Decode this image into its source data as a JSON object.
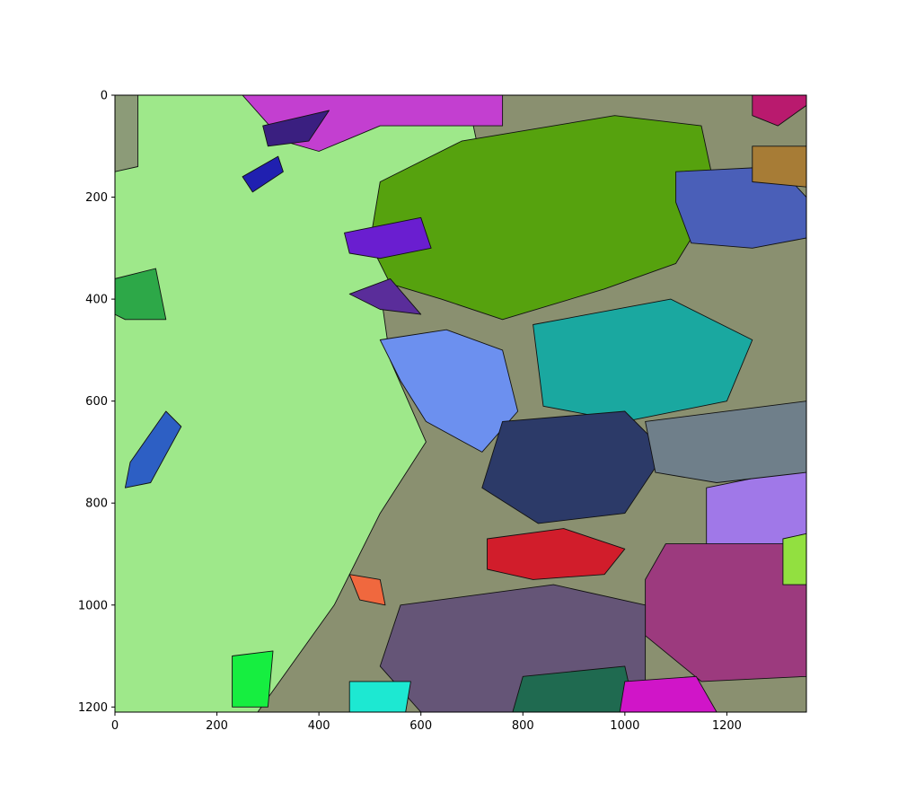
{
  "chart_data": {
    "type": "heatmap",
    "title": "",
    "xlabel": "",
    "ylabel": "",
    "xlim": [
      0,
      1356
    ],
    "ylim": [
      1210,
      0
    ],
    "x_ticks": [
      0,
      200,
      400,
      600,
      800,
      1000,
      1200
    ],
    "y_ticks": [
      0,
      200,
      400,
      600,
      800,
      1000,
      1200
    ],
    "x_tick_labels": [
      "0",
      "200",
      "400",
      "600",
      "800",
      "1000",
      "1200"
    ],
    "y_tick_labels": [
      "0",
      "200",
      "400",
      "600",
      "800",
      "1000",
      "1200"
    ],
    "grid": false,
    "background_color": "#8a9070",
    "regions": [
      {
        "name": "light-green-region-west",
        "color": "#9ee88a",
        "polygon": [
          [
            40,
            0
          ],
          [
            690,
            0
          ],
          [
            720,
            140
          ],
          [
            690,
            220
          ],
          [
            620,
            350
          ],
          [
            520,
            380
          ],
          [
            540,
            520
          ],
          [
            610,
            680
          ],
          [
            520,
            820
          ],
          [
            430,
            1000
          ],
          [
            280,
            1210
          ],
          [
            0,
            1210
          ],
          [
            0,
            0
          ]
        ]
      },
      {
        "name": "sage-strip-west",
        "color": "#8c9b78",
        "polygon": [
          [
            0,
            0
          ],
          [
            45,
            0
          ],
          [
            45,
            140
          ],
          [
            0,
            150
          ]
        ]
      },
      {
        "name": "olive-green-block-north",
        "color": "#56a20e",
        "polygon": [
          [
            520,
            170
          ],
          [
            680,
            90
          ],
          [
            980,
            40
          ],
          [
            1150,
            60
          ],
          [
            1180,
            200
          ],
          [
            1100,
            330
          ],
          [
            960,
            380
          ],
          [
            760,
            440
          ],
          [
            640,
            400
          ],
          [
            540,
            370
          ],
          [
            500,
            290
          ]
        ]
      },
      {
        "name": "magenta-band-north",
        "color": "#c33fd0",
        "polygon": [
          [
            250,
            0
          ],
          [
            760,
            0
          ],
          [
            760,
            60
          ],
          [
            520,
            60
          ],
          [
            400,
            110
          ],
          [
            330,
            90
          ]
        ]
      },
      {
        "name": "teal-block-center",
        "color": "#1aa8a0",
        "polygon": [
          [
            820,
            450
          ],
          [
            1090,
            400
          ],
          [
            1250,
            480
          ],
          [
            1200,
            600
          ],
          [
            1000,
            640
          ],
          [
            840,
            610
          ]
        ]
      },
      {
        "name": "blue-region-center",
        "color": "#6c90ef",
        "polygon": [
          [
            520,
            480
          ],
          [
            650,
            460
          ],
          [
            760,
            500
          ],
          [
            790,
            620
          ],
          [
            720,
            700
          ],
          [
            610,
            640
          ],
          [
            560,
            560
          ]
        ]
      },
      {
        "name": "dark-navy-block",
        "color": "#2c3a68",
        "polygon": [
          [
            760,
            640
          ],
          [
            1000,
            620
          ],
          [
            1080,
            700
          ],
          [
            1000,
            820
          ],
          [
            830,
            840
          ],
          [
            720,
            770
          ]
        ]
      },
      {
        "name": "blue-lagoon-region",
        "color": "#4a5fb8",
        "polygon": [
          [
            1100,
            150
          ],
          [
            1300,
            140
          ],
          [
            1356,
            200
          ],
          [
            1356,
            280
          ],
          [
            1250,
            300
          ],
          [
            1130,
            290
          ],
          [
            1100,
            210
          ]
        ]
      },
      {
        "name": "lavender-region-east",
        "color": "#a078e8",
        "polygon": [
          [
            1160,
            770
          ],
          [
            1356,
            730
          ],
          [
            1356,
            900
          ],
          [
            1240,
            920
          ],
          [
            1160,
            880
          ]
        ]
      },
      {
        "name": "red-block",
        "color": "#d11d2b",
        "polygon": [
          [
            730,
            870
          ],
          [
            880,
            850
          ],
          [
            1000,
            890
          ],
          [
            960,
            940
          ],
          [
            820,
            950
          ],
          [
            730,
            930
          ]
        ]
      },
      {
        "name": "purple-region-southeast",
        "color": "#9c3a7e",
        "polygon": [
          [
            1080,
            880
          ],
          [
            1356,
            880
          ],
          [
            1356,
            1140
          ],
          [
            1150,
            1150
          ],
          [
            1040,
            1060
          ],
          [
            1040,
            950
          ]
        ]
      },
      {
        "name": "muted-purple-south",
        "color": "#655577",
        "polygon": [
          [
            560,
            1000
          ],
          [
            860,
            960
          ],
          [
            1040,
            1000
          ],
          [
            1040,
            1150
          ],
          [
            880,
            1210
          ],
          [
            600,
            1210
          ],
          [
            520,
            1120
          ]
        ]
      },
      {
        "name": "dark-green-southeast",
        "color": "#1f6a50",
        "polygon": [
          [
            800,
            1140
          ],
          [
            1000,
            1120
          ],
          [
            1020,
            1210
          ],
          [
            780,
            1210
          ]
        ]
      },
      {
        "name": "magenta-southeast",
        "color": "#d015c8",
        "polygon": [
          [
            1000,
            1150
          ],
          [
            1140,
            1140
          ],
          [
            1180,
            1210
          ],
          [
            990,
            1210
          ]
        ]
      },
      {
        "name": "gray-slate-east",
        "color": "#6f7f8a",
        "polygon": [
          [
            1040,
            640
          ],
          [
            1356,
            600
          ],
          [
            1356,
            740
          ],
          [
            1180,
            760
          ],
          [
            1060,
            740
          ]
        ]
      },
      {
        "name": "purple-dark-ribbon",
        "color": "#5a2d9a",
        "polygon": [
          [
            460,
            390
          ],
          [
            540,
            360
          ],
          [
            600,
            430
          ],
          [
            520,
            420
          ]
        ]
      },
      {
        "name": "violet-patch-north",
        "color": "#6a1ed0",
        "polygon": [
          [
            450,
            270
          ],
          [
            600,
            240
          ],
          [
            620,
            300
          ],
          [
            520,
            320
          ],
          [
            460,
            310
          ]
        ]
      },
      {
        "name": "green-patch-west",
        "color": "#2da848",
        "polygon": [
          [
            0,
            360
          ],
          [
            80,
            340
          ],
          [
            100,
            440
          ],
          [
            20,
            440
          ],
          [
            0,
            430
          ]
        ]
      },
      {
        "name": "blue-lake-west",
        "color": "#2d5fc4",
        "polygon": [
          [
            30,
            720
          ],
          [
            100,
            620
          ],
          [
            130,
            650
          ],
          [
            70,
            760
          ],
          [
            20,
            770
          ]
        ]
      },
      {
        "name": "orange-red-patch",
        "color": "#f0683e",
        "polygon": [
          [
            460,
            940
          ],
          [
            520,
            950
          ],
          [
            530,
            1000
          ],
          [
            480,
            990
          ]
        ]
      },
      {
        "name": "cyan-patch-south",
        "color": "#1de8d2",
        "polygon": [
          [
            460,
            1150
          ],
          [
            580,
            1150
          ],
          [
            570,
            1210
          ],
          [
            460,
            1210
          ]
        ]
      },
      {
        "name": "bright-green-patch-south",
        "color": "#16ee40",
        "polygon": [
          [
            230,
            1100
          ],
          [
            310,
            1090
          ],
          [
            300,
            1200
          ],
          [
            230,
            1200
          ]
        ]
      },
      {
        "name": "bright-lime-patch-east",
        "color": "#92e040",
        "polygon": [
          [
            1310,
            870
          ],
          [
            1356,
            860
          ],
          [
            1356,
            960
          ],
          [
            1310,
            960
          ]
        ]
      },
      {
        "name": "crimson-patch-northeast",
        "color": "#b91a6e",
        "polygon": [
          [
            1250,
            0
          ],
          [
            1356,
            0
          ],
          [
            1356,
            20
          ],
          [
            1300,
            60
          ],
          [
            1250,
            40
          ]
        ]
      },
      {
        "name": "brown-patch-northeast",
        "color": "#a77c36",
        "polygon": [
          [
            1250,
            100
          ],
          [
            1356,
            100
          ],
          [
            1356,
            180
          ],
          [
            1250,
            170
          ]
        ]
      },
      {
        "name": "dark-indigo-lake",
        "color": "#3a1f80",
        "polygon": [
          [
            290,
            60
          ],
          [
            420,
            30
          ],
          [
            380,
            90
          ],
          [
            300,
            100
          ]
        ]
      },
      {
        "name": "blue-ribbon-lake",
        "color": "#2020b0",
        "polygon": [
          [
            250,
            160
          ],
          [
            320,
            120
          ],
          [
            330,
            150
          ],
          [
            270,
            190
          ]
        ]
      }
    ]
  }
}
